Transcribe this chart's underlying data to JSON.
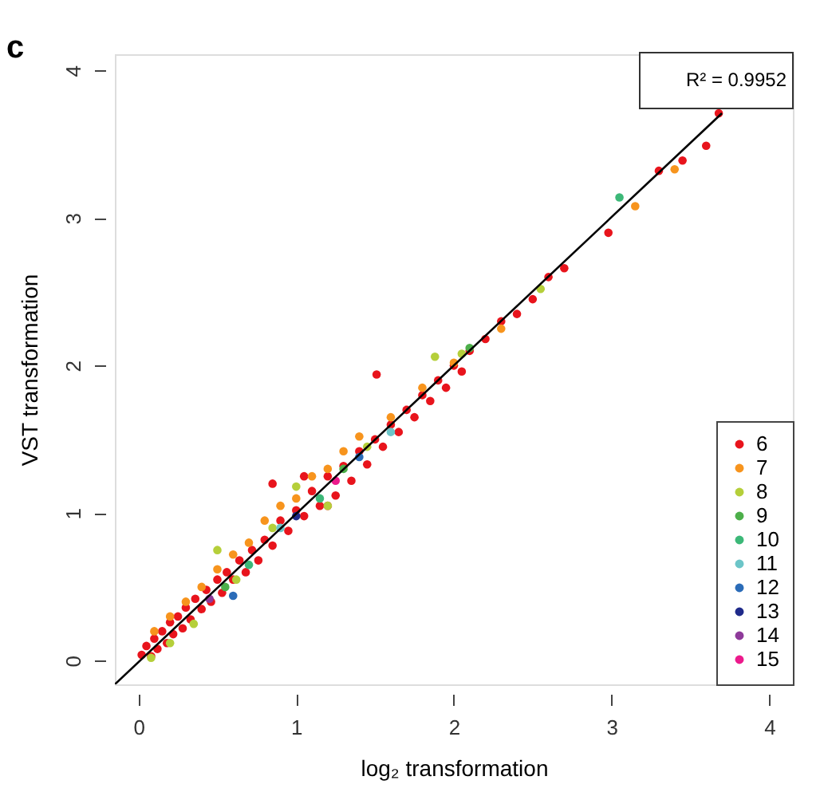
{
  "chart_data": {
    "type": "scatter",
    "xlabel": "log₂ transformation",
    "ylabel": "VST transformation",
    "xlim": [
      -0.15,
      4.15
    ],
    "ylim": [
      -0.16,
      4.11
    ],
    "xticks": [
      0,
      1,
      2,
      3,
      4
    ],
    "yticks": [
      0,
      1,
      2,
      3,
      4
    ],
    "grid": false,
    "legend": "bottom right",
    "marker": "circle",
    "annotations": [
      "c",
      "R² = 0.9952"
    ],
    "series": [
      {
        "name": "6",
        "color": "#e8141c",
        "x": [
          0.02,
          0.05,
          0.08,
          0.1,
          0.12,
          0.15,
          0.18,
          0.2,
          0.22,
          0.25,
          0.28,
          0.3,
          0.33,
          0.36,
          0.4,
          0.43,
          0.46,
          0.5,
          0.53,
          0.56,
          0.6,
          0.64,
          0.68,
          0.72,
          0.76,
          0.8,
          0.85,
          0.9,
          0.95,
          1.0,
          1.05,
          1.1,
          1.15,
          1.2,
          1.25,
          1.3,
          1.35,
          1.4,
          1.45,
          1.5,
          1.55,
          1.6,
          1.65,
          1.7,
          1.75,
          1.8,
          1.85,
          1.9,
          1.95,
          2.0,
          2.05,
          2.1,
          2.2,
          2.3,
          2.4,
          2.5,
          2.6,
          2.7,
          2.98,
          3.3,
          3.45,
          3.6,
          3.68,
          1.51,
          0.85,
          1.2,
          1.05
        ],
        "values": [
          0.04,
          0.1,
          0.03,
          0.15,
          0.08,
          0.2,
          0.12,
          0.26,
          0.18,
          0.3,
          0.22,
          0.36,
          0.28,
          0.42,
          0.35,
          0.48,
          0.4,
          0.55,
          0.46,
          0.6,
          0.55,
          0.68,
          0.6,
          0.75,
          0.68,
          0.82,
          0.78,
          0.95,
          0.88,
          1.02,
          0.98,
          1.15,
          1.05,
          1.25,
          1.12,
          1.32,
          1.22,
          1.42,
          1.33,
          1.5,
          1.45,
          1.6,
          1.55,
          1.7,
          1.65,
          1.8,
          1.76,
          1.9,
          1.85,
          2.0,
          1.96,
          2.1,
          2.18,
          2.3,
          2.35,
          2.45,
          2.6,
          2.66,
          2.9,
          3.32,
          3.39,
          3.49,
          3.71,
          1.94,
          1.2,
          1.05,
          1.25
        ]
      },
      {
        "name": "7",
        "color": "#f7941d",
        "x": [
          0.1,
          0.2,
          0.3,
          0.4,
          0.5,
          0.6,
          0.7,
          0.8,
          0.9,
          1.0,
          1.1,
          1.2,
          1.3,
          1.4,
          1.6,
          1.8,
          2.0,
          2.3,
          3.15,
          3.4
        ],
        "values": [
          0.2,
          0.3,
          0.4,
          0.5,
          0.62,
          0.72,
          0.8,
          0.95,
          1.05,
          1.1,
          1.25,
          1.3,
          1.42,
          1.52,
          1.65,
          1.85,
          2.02,
          2.25,
          3.08,
          3.33
        ]
      },
      {
        "name": "8",
        "color": "#b5cf3a",
        "x": [
          0.08,
          0.2,
          0.35,
          0.5,
          0.62,
          0.85,
          1.0,
          1.2,
          1.45,
          1.88,
          2.05,
          2.55
        ],
        "values": [
          0.02,
          0.12,
          0.25,
          0.75,
          0.55,
          0.9,
          1.18,
          1.05,
          1.45,
          2.06,
          2.08,
          2.52
        ]
      },
      {
        "name": "9",
        "color": "#4daf4a",
        "x": [
          0.55,
          1.3,
          2.1
        ],
        "values": [
          0.5,
          1.3,
          2.12
        ]
      },
      {
        "name": "10",
        "color": "#3cb878",
        "x": [
          3.05,
          1.15,
          0.7
        ],
        "values": [
          3.14,
          1.1,
          0.65
        ]
      },
      {
        "name": "11",
        "color": "#6cc5c8",
        "x": [
          0.9,
          1.6
        ],
        "values": [
          0.9,
          1.55
        ]
      },
      {
        "name": "12",
        "color": "#2b6cb8",
        "x": [
          0.6,
          1.4
        ],
        "values": [
          0.44,
          1.38
        ]
      },
      {
        "name": "13",
        "color": "#1f2a8a",
        "x": [
          1.0
        ],
        "values": [
          0.98
        ]
      },
      {
        "name": "14",
        "color": "#8e3a9a",
        "x": [
          0.45
        ],
        "values": [
          0.42
        ]
      },
      {
        "name": "15",
        "color": "#ec1a8c",
        "x": [
          1.25
        ],
        "values": [
          1.22
        ]
      },
      {
        "type": "line",
        "marker": "none",
        "color": "#000000",
        "x": [
          -0.15,
          3.7
        ],
        "values": [
          -0.16,
          3.71
        ]
      }
    ]
  }
}
